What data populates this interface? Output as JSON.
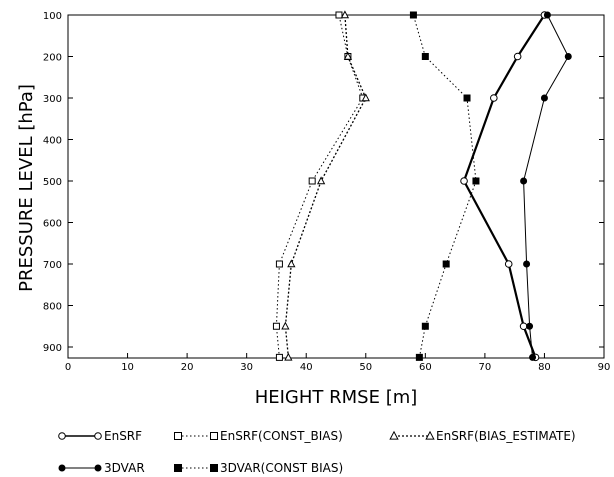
{
  "chart_data": {
    "type": "line",
    "title": "",
    "xlabel": "HEIGHT RMSE [m]",
    "ylabel": "PRESSURE LEVEL [hPa]",
    "xlim": [
      0,
      90
    ],
    "ylim": [
      925,
      100
    ],
    "y_inverted": true,
    "x_ticks": [
      "0",
      "10",
      "20",
      "30",
      "40",
      "50",
      "60",
      "70",
      "80",
      "90"
    ],
    "y_ticks": [
      "100",
      "200",
      "300",
      "400",
      "500",
      "600",
      "700",
      "800",
      "900"
    ],
    "grid": false,
    "legend_position": "bottom",
    "y": [
      925,
      850,
      700,
      500,
      300,
      200,
      100
    ],
    "series": [
      {
        "name": "EnSRF",
        "marker": "open-circle",
        "line": "solid",
        "x": [
          78.5,
          76.5,
          74.0,
          66.5,
          71.5,
          75.5,
          80.0
        ]
      },
      {
        "name": "EnSRF(CONST_BIAS)",
        "marker": "open-square",
        "line": "dotted",
        "x": [
          35.5,
          35.0,
          35.5,
          41.0,
          49.5,
          47.0,
          45.5
        ]
      },
      {
        "name": "EnSRF(BIAS_ESTIMATE)",
        "marker": "open-triangle",
        "line": "dashed",
        "x": [
          37.0,
          36.5,
          37.5,
          42.5,
          50.0,
          47.0,
          46.5
        ]
      },
      {
        "name": "3DVAR",
        "marker": "filled-circle",
        "line": "solid-thin",
        "x": [
          78.0,
          77.5,
          77.0,
          76.5,
          80.0,
          84.0,
          80.5
        ]
      },
      {
        "name": "3DVAR(CONST BIAS)",
        "marker": "filled-square",
        "line": "dotted",
        "x": [
          59.0,
          60.0,
          63.5,
          68.5,
          67.0,
          60.0,
          58.0
        ]
      }
    ]
  }
}
